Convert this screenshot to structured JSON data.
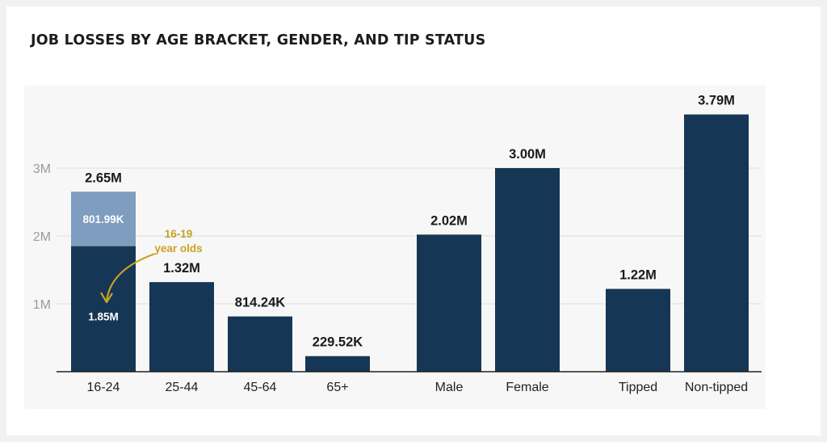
{
  "chart_data": {
    "type": "bar",
    "title": "JOB LOSSES BY AGE BRACKET, GENDER, AND TIP STATUS",
    "xlabel": "",
    "ylabel": "",
    "ylim": [
      0,
      3800000
    ],
    "yticks": [
      {
        "value": 1000000,
        "label": "1M"
      },
      {
        "value": 2000000,
        "label": "2M"
      },
      {
        "value": 3000000,
        "label": "3M"
      }
    ],
    "grid": true,
    "groups": [
      {
        "name": "age",
        "bars": [
          {
            "category": "16-24",
            "value": 2650000,
            "label": "2.65M",
            "segments": [
              {
                "value": 1850000,
                "label": "1.85M"
              },
              {
                "value": 801990,
                "label": "801.99K"
              }
            ]
          },
          {
            "category": "25-44",
            "value": 1320000,
            "label": "1.32M"
          },
          {
            "category": "45-64",
            "value": 814240,
            "label": "814.24K"
          },
          {
            "category": "65+",
            "value": 229520,
            "label": "229.52K"
          }
        ]
      },
      {
        "name": "gender",
        "bars": [
          {
            "category": "Male",
            "value": 2020000,
            "label": "2.02M"
          },
          {
            "category": "Female",
            "value": 3000000,
            "label": "3.00M"
          }
        ]
      },
      {
        "name": "tip status",
        "bars": [
          {
            "category": "Tipped",
            "value": 1220000,
            "label": "1.22M"
          },
          {
            "category": "Non-tipped",
            "value": 3790000,
            "label": "3.79M"
          }
        ]
      }
    ],
    "annotation": {
      "lines": [
        "16-19",
        "year olds"
      ],
      "color": "#c9a227"
    },
    "colors": {
      "bar": "#163655",
      "highlight": "#7f9dbe",
      "gridline": "#dedede",
      "axis": "#222222",
      "panel": "#f7f7f7"
    }
  }
}
